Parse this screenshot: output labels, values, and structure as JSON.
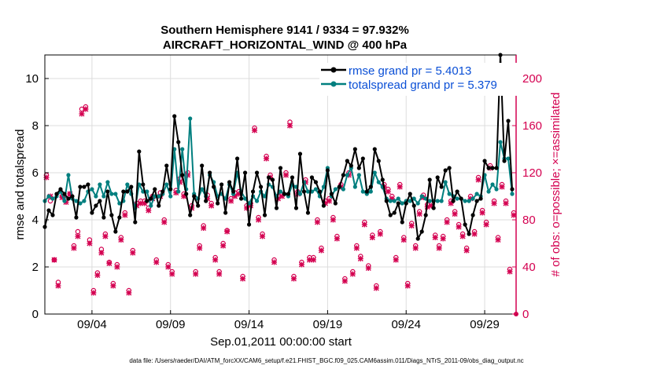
{
  "chart_data": {
    "type": "line",
    "title": "Southern Hemisphere 9141 / 9334 = 97.932%",
    "subtitle": "AIRCRAFT_HORIZONTAL_WIND @ 400 hPa",
    "xlabel": "Sep.01,2011 00:00:00 start",
    "ylabel_left": "rmse and totalspread",
    "ylabel_right": "# of obs: o=possible; ×=assimilated",
    "x_ticks": [
      "09/04",
      "09/09",
      "09/14",
      "09/19",
      "09/24",
      "09/29"
    ],
    "x_tick_days": [
      4,
      9,
      14,
      19,
      24,
      29
    ],
    "xlim": [
      1,
      31
    ],
    "ylim_left": [
      0,
      11
    ],
    "ylim_right": [
      0,
      220
    ],
    "y_ticks_left": [
      "0",
      "2",
      "4",
      "6",
      "8",
      "10"
    ],
    "y_ticks_right": [
      "0",
      "40",
      "80",
      "120",
      "160",
      "200"
    ],
    "grid": true,
    "legend_placement": "top-right",
    "x_days": [
      1.0,
      1.25,
      1.5,
      1.75,
      2.0,
      2.25,
      2.5,
      2.75,
      3.0,
      3.25,
      3.5,
      3.75,
      4.0,
      4.25,
      4.5,
      4.75,
      5.0,
      5.25,
      5.5,
      5.75,
      6.0,
      6.25,
      6.5,
      6.75,
      7.0,
      7.25,
      7.5,
      7.75,
      8.0,
      8.25,
      8.5,
      8.75,
      9.0,
      9.25,
      9.5,
      9.75,
      10.0,
      10.25,
      10.5,
      10.75,
      11.0,
      11.25,
      11.5,
      11.75,
      12.0,
      12.25,
      12.5,
      12.75,
      13.0,
      13.25,
      13.5,
      13.75,
      14.0,
      14.25,
      14.5,
      14.75,
      15.0,
      15.25,
      15.5,
      15.75,
      16.0,
      16.25,
      16.5,
      16.75,
      17.0,
      17.25,
      17.5,
      17.75,
      18.0,
      18.25,
      18.5,
      18.75,
      19.0,
      19.25,
      19.5,
      19.75,
      20.0,
      20.25,
      20.5,
      20.75,
      21.0,
      21.25,
      21.5,
      21.75,
      22.0,
      22.25,
      22.5,
      22.75,
      23.0,
      23.25,
      23.5,
      23.75,
      24.0,
      24.25,
      24.5,
      24.75,
      25.0,
      25.25,
      25.5,
      25.75,
      26.0,
      26.25,
      26.5,
      26.75,
      27.0,
      27.25,
      27.5,
      27.75,
      28.0,
      28.25,
      28.5,
      28.75,
      29.0,
      29.25,
      29.5,
      29.75,
      30.0,
      30.25,
      30.5,
      30.75
    ],
    "series": [
      {
        "name": "rmse grand pr = 5.4013",
        "color": "#000000",
        "values": [
          3.7,
          4.4,
          4.2,
          5.1,
          5.3,
          5.1,
          4.9,
          5.0,
          4.1,
          5.4,
          5.4,
          5.5,
          4.3,
          4.6,
          4.8,
          4.1,
          5.2,
          4.2,
          3.5,
          4.1,
          5.2,
          5.2,
          5.4,
          3.9,
          6.9,
          5.5,
          4.8,
          4.9,
          5.3,
          4.6,
          5.2,
          6.3,
          5.3,
          8.4,
          7.3,
          5.9,
          5.1,
          4.2,
          5.0,
          4.6,
          6.3,
          4.8,
          6.0,
          5.4,
          4.7,
          5.5,
          4.3,
          5.6,
          5.2,
          6.6,
          4.9,
          6.0,
          3.8,
          5.2,
          6.0,
          5.4,
          4.2,
          5.8,
          5.7,
          4.5,
          6.2,
          5.1,
          5.1,
          5.8,
          4.5,
          6.8,
          5.2,
          4.3,
          5.8,
          5.6,
          5.2,
          4.6,
          6.1,
          5.1,
          4.7,
          5.4,
          5.9,
          6.5,
          6.3,
          7.0,
          6.2,
          6.6,
          5.2,
          5.4,
          7.0,
          6.5,
          5.7,
          4.8,
          4.2,
          4.3,
          4.7,
          3.9,
          4.7,
          5.1,
          4.6,
          3.2,
          3.5,
          4.2,
          5.7,
          4.5,
          5.8,
          5.4,
          6.1,
          6.2,
          4.8,
          5.2,
          4.9,
          3.8,
          3.4,
          4.2,
          4.8,
          4.9,
          6.5,
          6.2,
          6.2,
          6.2,
          11.0,
          6.5,
          8.2,
          5.3
        ]
      },
      {
        "name": "totalspread grand pr = 5.379",
        "color": "#007f7f",
        "values": [
          4.8,
          5.0,
          4.9,
          5.0,
          5.2,
          4.8,
          5.9,
          4.9,
          4.8,
          4.7,
          4.8,
          5.2,
          5.3,
          5.0,
          5.5,
          5.0,
          5.6,
          5.1,
          5.1,
          4.7,
          4.8,
          5.5,
          5.1,
          4.5,
          5.5,
          5.2,
          5.2,
          4.6,
          5.0,
          5.0,
          5.1,
          5.5,
          5.0,
          7.0,
          5.2,
          7.0,
          5.3,
          8.3,
          5.1,
          4.9,
          5.3,
          5.0,
          5.9,
          5.6,
          5.0,
          5.1,
          4.9,
          5.5,
          5.1,
          6.0,
          5.2,
          4.9,
          4.7,
          5.0,
          4.8,
          5.2,
          5.0,
          5.5,
          5.4,
          5.0,
          5.2,
          5.1,
          5.0,
          5.5,
          5.4,
          5.1,
          5.6,
          5.2,
          5.2,
          5.3,
          5.0,
          5.4,
          6.2,
          5.0,
          5.3,
          5.4,
          5.3,
          5.9,
          6.2,
          5.4,
          5.9,
          5.2,
          5.1,
          5.2,
          6.0,
          5.6,
          5.4,
          4.9,
          4.8,
          4.8,
          4.9,
          4.7,
          4.8,
          4.8,
          4.9,
          4.7,
          5.0,
          4.9,
          4.8,
          4.8,
          4.8,
          4.8,
          5.6,
          5.1,
          5.0,
          4.9,
          4.9,
          4.8,
          4.8,
          4.9,
          5.1,
          5.0,
          5.9,
          5.2,
          5.5,
          5.3,
          7.3,
          6.6,
          6.6,
          5.1
        ]
      },
      {
        "name": "possible observations",
        "color": "#d40050",
        "values": [
          118,
          96,
          46,
          27,
          100,
          97,
          102,
          58,
          70,
          174,
          176,
          63,
          20,
          35,
          55,
          68,
          44,
          26,
          42,
          65,
          86,
          20,
          54,
          94,
          96,
          96,
          90,
          100,
          46,
          103,
          80,
          42,
          36,
          105,
          115,
          102,
          120,
          92,
          36,
          58,
          75,
          101,
          94,
          48,
          36,
          60,
          71,
          98,
          103,
          104,
          32,
          92,
          94,
          158,
          82,
          68,
          134,
          118,
          46,
          100,
          102,
          120,
          163,
          32,
          104,
          44,
          114,
          48,
          48,
          80,
          56,
          96,
          98,
          82,
          66,
          110,
          30,
          120,
          36,
          58,
          49,
          78,
          41,
          67,
          24,
          70,
          110,
          106,
          100,
          48,
          110,
          65,
          26,
          77,
          58,
          87,
          101,
          93,
          94,
          67,
          58,
          66,
          80,
          96,
          87,
          76,
          68,
          56,
          100,
          70,
          116,
          88,
          78,
          126,
          96,
          65,
          110,
          96,
          38,
          86
        ]
      },
      {
        "name": "assimilated observations",
        "color": "#d40050",
        "values": [
          116,
          100,
          46,
          24,
          99,
          95,
          102,
          56,
          66,
          170,
          174,
          60,
          18,
          33,
          52,
          66,
          43,
          24,
          40,
          63,
          84,
          18,
          52,
          92,
          94,
          94,
          88,
          98,
          44,
          100,
          78,
          40,
          34,
          103,
          112,
          100,
          118,
          90,
          34,
          56,
          73,
          98,
          92,
          46,
          34,
          58,
          70,
          96,
          100,
          102,
          30,
          90,
          92,
          156,
          80,
          66,
          132,
          116,
          44,
          98,
          100,
          118,
          160,
          30,
          102,
          42,
          112,
          46,
          46,
          78,
          54,
          94,
          96,
          80,
          64,
          108,
          28,
          118,
          34,
          56,
          47,
          76,
          39,
          65,
          22,
          68,
          108,
          104,
          98,
          46,
          108,
          63,
          24,
          75,
          56,
          85,
          99,
          91,
          92,
          65,
          56,
          64,
          78,
          94,
          85,
          74,
          66,
          54,
          98,
          68,
          114,
          86,
          76,
          124,
          94,
          63,
          108,
          94,
          36,
          84
        ]
      }
    ]
  },
  "footer_text": "data file: /Users/raeder/DAI/ATM_forcXX/CAM6_setup/f.e21.FHIST_BGC.f09_025.CAM6assim.011/Diags_NTrS_2011-09/obs_diag_output.nc",
  "colors": {
    "rmse": "#000000",
    "spread": "#007f7f",
    "obs": "#d40050",
    "legend_text": "#0a4fd6",
    "grid": "#dcdcdc"
  }
}
